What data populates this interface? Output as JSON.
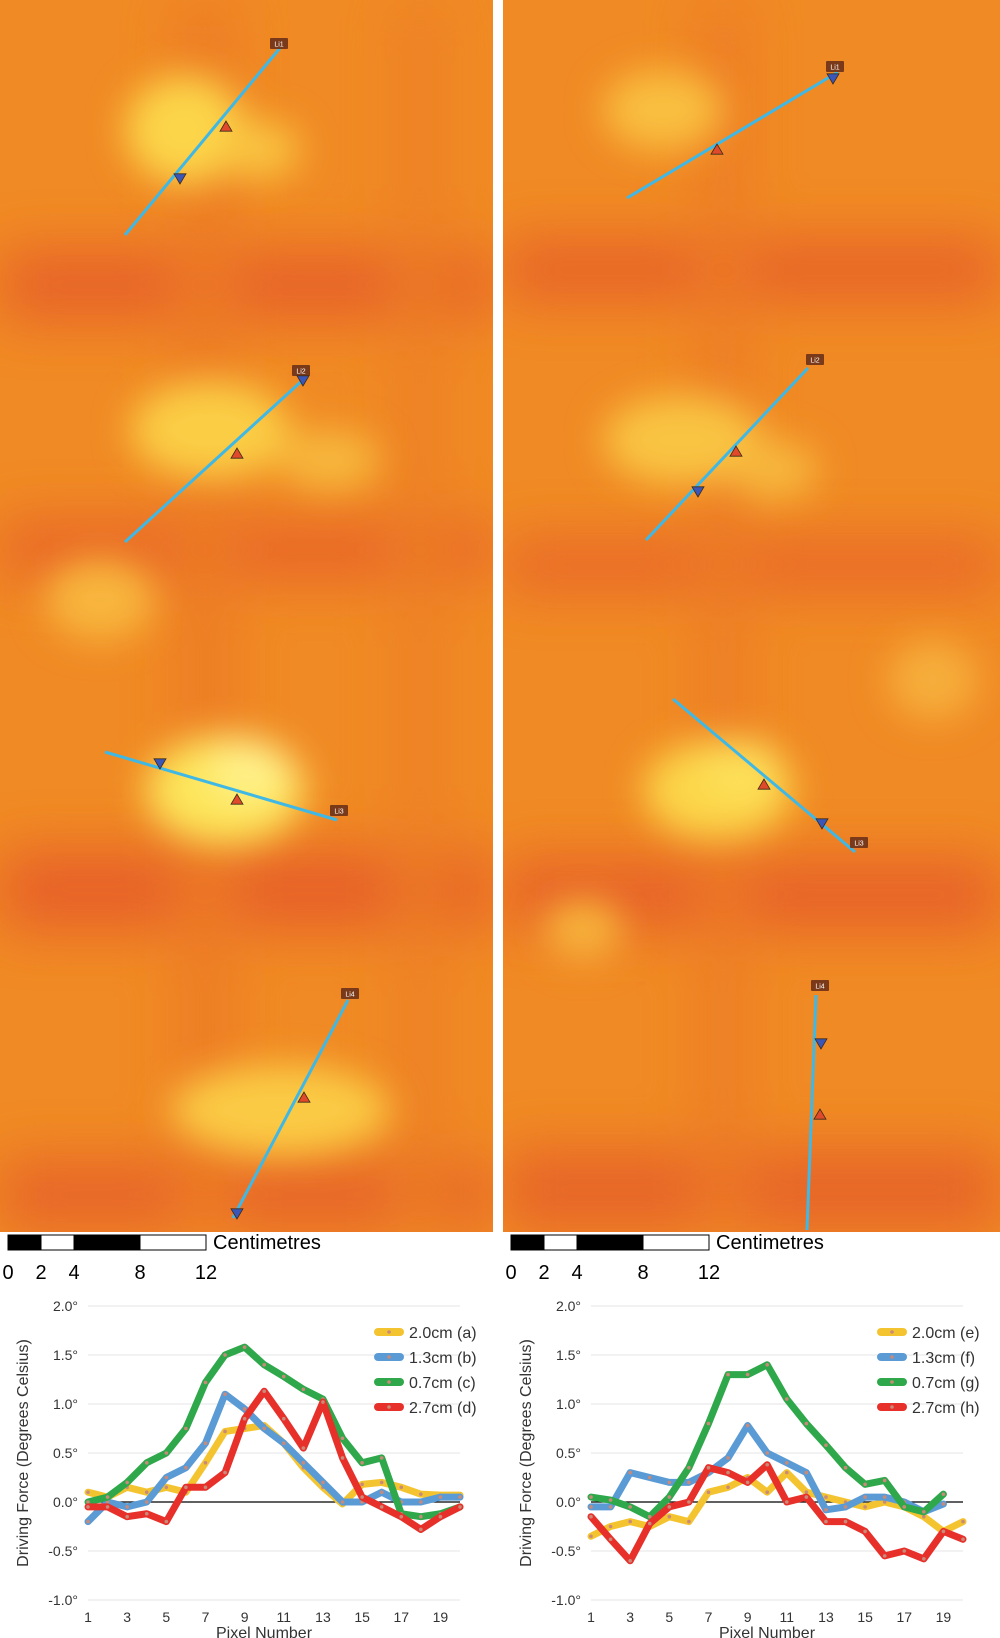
{
  "thermal_maps": [
    {
      "lines": [
        {
          "label": "Li1",
          "markers": [
            "down",
            "up"
          ]
        },
        {
          "label": "Li2",
          "markers": [
            "up",
            "down"
          ]
        },
        {
          "label": "Li3",
          "markers": [
            "down",
            "up"
          ]
        },
        {
          "label": "Li4",
          "markers": [
            "up",
            "down"
          ]
        }
      ]
    },
    {
      "lines": [
        {
          "label": "Li1",
          "markers": [
            "up",
            "down"
          ]
        },
        {
          "label": "Li2",
          "markers": [
            "down",
            "up"
          ]
        },
        {
          "label": "Li3",
          "markers": [
            "up",
            "down"
          ]
        },
        {
          "label": "Li4",
          "markers": [
            "down",
            "up"
          ]
        }
      ]
    }
  ],
  "scale_bar": {
    "unit_label": "Centimetres",
    "tick_labels": [
      "0",
      "2",
      "4",
      "8",
      "12"
    ],
    "segment_colors": [
      "#000000",
      "#ffffff",
      "#000000",
      "#ffffff"
    ]
  },
  "colors": {
    "map_base": "#f08a24",
    "map_hot": "#fff36a",
    "map_cool": "#e2482e",
    "profile_line": "#3fb8e6",
    "marker_up": "#e04a2a",
    "marker_down": "#3a56b8"
  },
  "chart_data": [
    {
      "type": "line",
      "xlabel": "Pixel Number",
      "ylabel": "Driving Force (Degrees Celsius)",
      "ylim": [
        -1.0,
        2.0
      ],
      "xlim": [
        1,
        20
      ],
      "y_ticks": [
        "2.0°",
        "1.5°",
        "1.0°",
        "0.5°",
        "0.0°",
        "-0.5°",
        "-1.0°"
      ],
      "x_ticks": [
        "1",
        "3",
        "5",
        "7",
        "9",
        "11",
        "13",
        "15",
        "17",
        "19"
      ],
      "grid": true,
      "legend": "top-right",
      "series": [
        {
          "name": "2.0cm (a)",
          "color": "#f4c430",
          "x": [
            1,
            2,
            3,
            4,
            5,
            6,
            7,
            8,
            9,
            10,
            11,
            12,
            13,
            14,
            15,
            16,
            17,
            18,
            19,
            20
          ],
          "values": [
            0.1,
            0.05,
            0.15,
            0.1,
            0.15,
            0.1,
            0.4,
            0.72,
            0.75,
            0.78,
            0.6,
            0.35,
            0.15,
            -0.02,
            0.18,
            0.2,
            0.15,
            0.08,
            0.07,
            0.07
          ]
        },
        {
          "name": "1.3cm (b)",
          "color": "#5b9bd5",
          "x": [
            1,
            2,
            3,
            4,
            5,
            6,
            7,
            8,
            9,
            10,
            11,
            12,
            13,
            14,
            15,
            16,
            17,
            18,
            19,
            20
          ],
          "values": [
            -0.2,
            0.0,
            -0.05,
            0.0,
            0.25,
            0.35,
            0.6,
            1.1,
            0.95,
            0.75,
            0.6,
            0.4,
            0.2,
            0.0,
            0.0,
            0.1,
            0.0,
            0.0,
            0.05,
            0.05
          ]
        },
        {
          "name": "0.7cm (c)",
          "color": "#2ea84a",
          "x": [
            1,
            2,
            3,
            4,
            5,
            6,
            7,
            8,
            9,
            10,
            11,
            12,
            13,
            14,
            15,
            16,
            17,
            18,
            19,
            20
          ],
          "values": [
            0.0,
            0.05,
            0.2,
            0.4,
            0.5,
            0.75,
            1.22,
            1.5,
            1.58,
            1.4,
            1.28,
            1.15,
            1.05,
            0.65,
            0.4,
            0.45,
            -0.12,
            -0.15,
            -0.12,
            -0.05
          ]
        },
        {
          "name": "2.7cm (d)",
          "color": "#e8302a",
          "x": [
            1,
            2,
            3,
            4,
            5,
            6,
            7,
            8,
            9,
            10,
            11,
            12,
            13,
            14,
            15,
            16,
            17,
            18,
            19,
            20
          ],
          "values": [
            -0.05,
            -0.05,
            -0.15,
            -0.12,
            -0.2,
            0.15,
            0.15,
            0.3,
            0.85,
            1.13,
            0.85,
            0.55,
            1.02,
            0.45,
            0.05,
            -0.05,
            -0.15,
            -0.28,
            -0.15,
            -0.05
          ]
        }
      ]
    },
    {
      "type": "line",
      "xlabel": "Pixel Number",
      "ylabel": "Driving Force (Degrees Celsius)",
      "ylim": [
        -1.0,
        2.0
      ],
      "xlim": [
        1,
        20
      ],
      "y_ticks": [
        "2.0°",
        "1.5°",
        "1.0°",
        "0.5°",
        "0.0°",
        "-0.5°",
        "-1.0°"
      ],
      "x_ticks": [
        "1",
        "3",
        "5",
        "7",
        "9",
        "11",
        "13",
        "15",
        "17",
        "19"
      ],
      "grid": true,
      "legend": "top-right",
      "series": [
        {
          "name": "2.0cm (e)",
          "color": "#f4c430",
          "x": [
            1,
            2,
            3,
            4,
            5,
            6,
            7,
            8,
            9,
            10,
            11,
            12,
            13,
            14,
            15,
            16,
            17,
            18,
            19,
            20
          ],
          "values": [
            -0.35,
            -0.25,
            -0.2,
            -0.25,
            -0.15,
            -0.2,
            0.1,
            0.15,
            0.25,
            0.1,
            0.3,
            0.1,
            0.05,
            0.0,
            -0.05,
            0.0,
            -0.05,
            -0.15,
            -0.3,
            -0.2
          ]
        },
        {
          "name": "1.3cm (f)",
          "color": "#5b9bd5",
          "x": [
            1,
            2,
            3,
            4,
            5,
            6,
            7,
            8,
            9,
            10,
            11,
            12,
            13,
            14,
            15,
            16,
            17,
            18,
            19
          ],
          "values": [
            -0.05,
            -0.05,
            0.3,
            0.25,
            0.2,
            0.2,
            0.3,
            0.45,
            0.78,
            0.5,
            0.4,
            0.3,
            -0.08,
            -0.05,
            0.05,
            0.05,
            0.0,
            -0.1,
            -0.02
          ]
        },
        {
          "name": "0.7cm (g)",
          "color": "#2ea84a",
          "x": [
            1,
            2,
            3,
            4,
            5,
            6,
            7,
            8,
            9,
            10,
            11,
            12,
            13,
            14,
            15,
            16,
            17,
            18,
            19
          ],
          "values": [
            0.05,
            0.02,
            -0.05,
            -0.15,
            0.05,
            0.35,
            0.8,
            1.3,
            1.3,
            1.4,
            1.05,
            0.8,
            0.58,
            0.35,
            0.18,
            0.22,
            -0.05,
            -0.1,
            0.08
          ]
        },
        {
          "name": "2.7cm (h)",
          "color": "#e8302a",
          "x": [
            1,
            2,
            3,
            4,
            5,
            6,
            7,
            8,
            9,
            10,
            11,
            12,
            13,
            14,
            15,
            16,
            17,
            18,
            19,
            20
          ],
          "values": [
            -0.15,
            -0.38,
            -0.6,
            -0.22,
            -0.05,
            0.0,
            0.35,
            0.3,
            0.2,
            0.38,
            0.0,
            0.05,
            -0.2,
            -0.2,
            -0.3,
            -0.55,
            -0.5,
            -0.58,
            -0.3,
            -0.38
          ]
        }
      ]
    }
  ]
}
